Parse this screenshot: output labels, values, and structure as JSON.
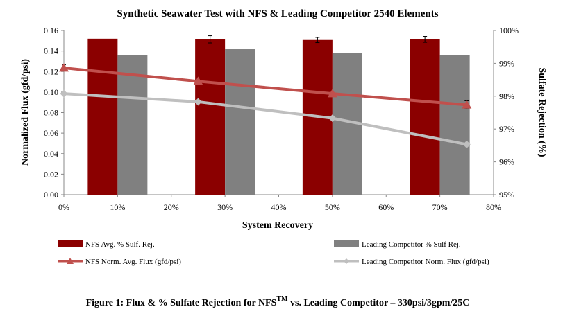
{
  "chart_data": {
    "type": "bar",
    "title": "Synthetic Seawater Test with NFS & Leading Competitor 2540 Elements",
    "xlabel": "System Recovery",
    "ylabel_left": "Normalized Flux (gfd/psi)",
    "ylabel_right": "Sulfate Rejection (%)",
    "xlim": [
      0,
      80
    ],
    "x_ticks": [
      "0%",
      "10%",
      "20%",
      "30%",
      "40%",
      "50%",
      "60%",
      "70%",
      "80%"
    ],
    "ylim_left": [
      0,
      0.16
    ],
    "y_ticks_left": [
      "0.00",
      "0.02",
      "0.04",
      "0.06",
      "0.08",
      "0.10",
      "0.12",
      "0.14",
      "0.16"
    ],
    "ylim_right": [
      95,
      100
    ],
    "y_ticks_right": [
      "95%",
      "96%",
      "97%",
      "98%",
      "99%",
      "100%"
    ],
    "grid": false,
    "legend_position": "bottom",
    "bar_groups": [
      {
        "x_center": 10,
        "nfs": 99.75,
        "nfs_err": 0.0,
        "competitor": 99.25
      },
      {
        "x_center": 30,
        "nfs": 99.73,
        "nfs_err": 0.11,
        "competitor": 99.43
      },
      {
        "x_center": 50,
        "nfs": 99.71,
        "nfs_err": 0.08,
        "competitor": 99.32
      },
      {
        "x_center": 70,
        "nfs": 99.73,
        "nfs_err": 0.09,
        "competitor": 99.25
      }
    ],
    "series": [
      {
        "name": "NFS Avg. % Sulf. Rej.",
        "kind": "bar",
        "axis": "right",
        "color": "#8b0000"
      },
      {
        "name": "Leading Competitor % Sulf Rej.",
        "kind": "bar",
        "axis": "right",
        "color": "#808080"
      },
      {
        "name": "NFS Norm. Avg. Flux (gfd/psi)",
        "kind": "line",
        "marker": "triangle",
        "axis": "left",
        "color": "#c0504d",
        "x": [
          0,
          25,
          50,
          75
        ],
        "values": [
          0.1235,
          0.1105,
          0.0985,
          0.0875
        ],
        "errors": [
          0.003,
          0.0,
          0.0,
          0.004
        ]
      },
      {
        "name": "Leading Competitor Norm. Flux (gfd/psi)",
        "kind": "line",
        "marker": "diamond",
        "axis": "left",
        "color": "#bfbfbf",
        "x": [
          0,
          25,
          50,
          75
        ],
        "values": [
          0.0985,
          0.0905,
          0.0745,
          0.049
        ],
        "errors": [
          0,
          0,
          0,
          0
        ]
      }
    ]
  },
  "caption": {
    "text_before": "Figure 1: Flux & % Sulfate Rejection  for NFS",
    "superscript": "TM",
    "text_after": " vs. Leading Competitor  – 330psi/3gpm/25C"
  }
}
